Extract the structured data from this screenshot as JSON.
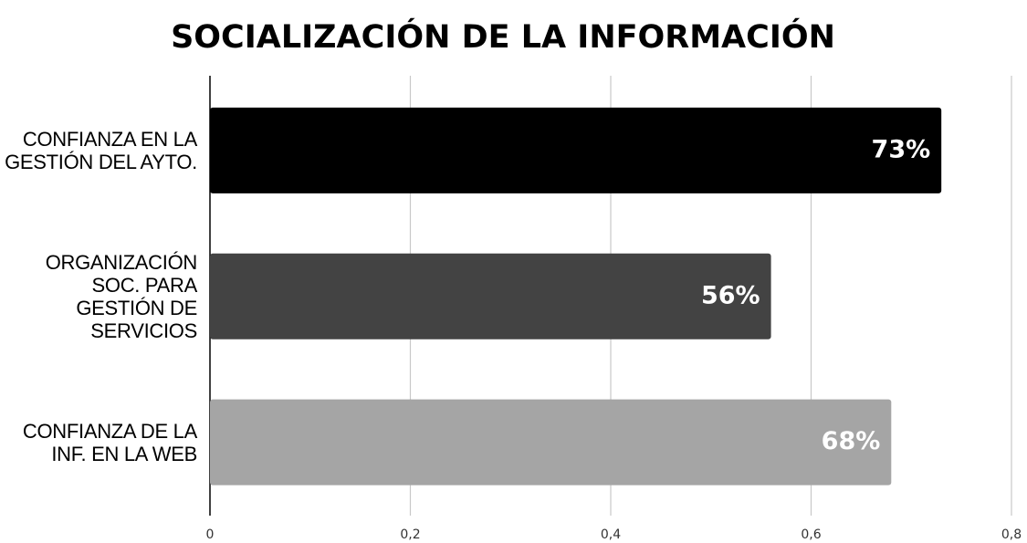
{
  "chart_data": {
    "type": "barh",
    "title": "SOCIALIZACIÓN DE LA INFORMACIÓN",
    "categories": [
      "CONFIANZA EN LA GESTIÓN DEL AYTO.",
      "ORGANIZACIÓN SOC. PARA GESTIÓN DE SERVICIOS",
      "CONFIANZA DE LA INF. EN LA WEB"
    ],
    "values": [
      0.73,
      0.56,
      0.68
    ],
    "value_labels": [
      "73%",
      "56%",
      "68%"
    ],
    "colors": [
      "#000000",
      "#434343",
      "#a5a5a5"
    ],
    "xlim": [
      0,
      0.8
    ],
    "xticks": [
      0,
      {
        "value": 0.2,
        "label": "0,2"
      },
      {
        "value": 0.4,
        "label": "0,4"
      },
      {
        "value": 0.6,
        "label": "0,6"
      },
      {
        "value": 0.8,
        "label": "0,8"
      }
    ],
    "grid": true
  }
}
